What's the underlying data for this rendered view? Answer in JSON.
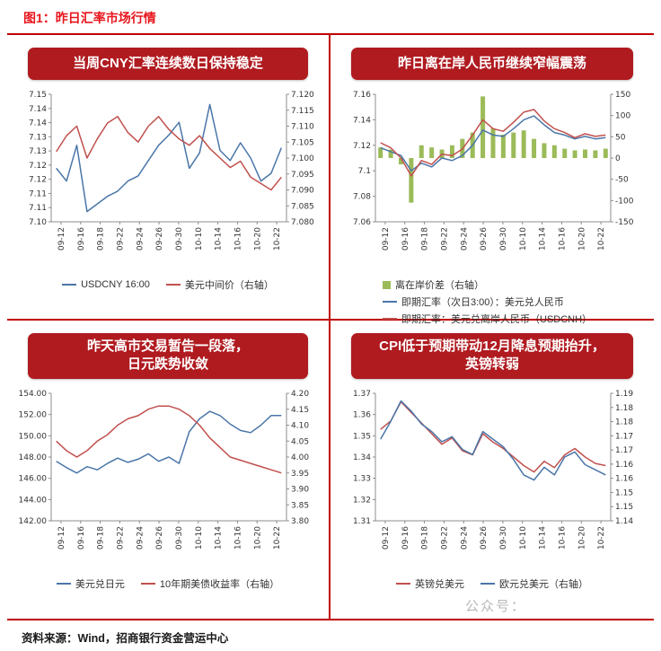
{
  "figure": {
    "title": "图1：昨日汇率市场行情",
    "source_note": "资料来源：Wind，招商银行资金营运中心",
    "watermark": "公众号："
  },
  "colors": {
    "blue": "#4a76a8",
    "red": "#c0504d",
    "green": "#9bbb59",
    "banner_red": "#b01b20",
    "divider_red": "#c00000",
    "title_red": "#e8151c"
  },
  "chart_data": [
    {
      "type": "line",
      "title": "当周CNY汇率连续数日保持稳定",
      "xlabel": "",
      "ylabel": "",
      "x": [
        "09-12",
        "09-15",
        "09-16",
        "09-17",
        "09-18",
        "09-19",
        "09-22",
        "09-23",
        "09-24",
        "09-25",
        "09-26",
        "09-29",
        "09-30",
        "10-09",
        "10-10",
        "10-13",
        "10-14",
        "10-15",
        "10-16",
        "10-17",
        "10-20",
        "10-21",
        "10-22"
      ],
      "x_tick_labels": [
        "09-12",
        "09-16",
        "09-18",
        "09-22",
        "09-24",
        "09-26",
        "09-30",
        "10-10",
        "10-14",
        "10-16",
        "10-20",
        "10-22"
      ],
      "left_axis": {
        "range": [
          7.1,
          7.15
        ],
        "ticks": [
          "7.15",
          "7.14",
          "7.14",
          "7.13",
          "7.13",
          "7.12",
          "7.12",
          "7.11",
          "7.11",
          "7.10"
        ]
      },
      "right_axis": {
        "range": [
          7.08,
          7.12
        ],
        "ticks": [
          "7.120",
          "7.115",
          "7.110",
          "7.105",
          "7.100",
          "7.095",
          "7.090",
          "7.085",
          "7.080"
        ]
      },
      "legend_layout": "row",
      "series": [
        {
          "name": "USDCNY 16:00",
          "type": "line",
          "axis": "left",
          "color": "blue",
          "values": [
            7.121,
            7.116,
            7.13,
            7.104,
            7.107,
            7.11,
            7.112,
            7.116,
            7.118,
            7.124,
            7.13,
            7.134,
            7.139,
            7.121,
            7.127,
            7.146,
            7.128,
            7.124,
            7.131,
            7.125,
            7.116,
            7.119,
            7.129
          ]
        },
        {
          "name": "美元中间价（右轴）",
          "type": "line",
          "axis": "right",
          "color": "red",
          "values": [
            7.102,
            7.107,
            7.11,
            7.1,
            7.106,
            7.111,
            7.113,
            7.108,
            7.105,
            7.11,
            7.113,
            7.109,
            7.106,
            7.104,
            7.107,
            7.103,
            7.1,
            7.097,
            7.099,
            7.094,
            7.092,
            7.09,
            7.094
          ]
        }
      ]
    },
    {
      "type": "line",
      "title": "昨日离在岸人民币继续窄幅震荡",
      "xlabel": "",
      "ylabel": "",
      "x": [
        "09-12",
        "09-15",
        "09-16",
        "09-17",
        "09-18",
        "09-19",
        "09-22",
        "09-23",
        "09-24",
        "09-25",
        "09-26",
        "09-29",
        "09-30",
        "10-09",
        "10-10",
        "10-13",
        "10-14",
        "10-15",
        "10-16",
        "10-17",
        "10-20",
        "10-21",
        "10-22"
      ],
      "x_tick_labels": [
        "09-12",
        "09-16",
        "09-18",
        "09-22",
        "09-24",
        "09-26",
        "09-30",
        "10-10",
        "10-14",
        "10-16",
        "10-20",
        "10-22"
      ],
      "left_axis": {
        "range": [
          7.06,
          7.16
        ],
        "ticks": [
          "7.16",
          "7.14",
          "7.12",
          "7.1",
          "7.08",
          "7.06"
        ]
      },
      "right_axis": {
        "range": [
          -150,
          150
        ],
        "ticks": [
          "150",
          "100",
          "50",
          "0",
          "-50",
          "-100",
          "-150"
        ]
      },
      "legend_layout": "column",
      "series": [
        {
          "name": "离在岸价差（右轴）",
          "type": "bar",
          "axis": "right",
          "color": "green",
          "values": [
            25,
            20,
            -15,
            -105,
            30,
            25,
            20,
            30,
            45,
            60,
            145,
            70,
            55,
            60,
            65,
            45,
            35,
            30,
            22,
            18,
            20,
            18,
            22
          ]
        },
        {
          "name": "即期汇率（次日3:00）：美元兑人民币",
          "type": "line",
          "axis": "left",
          "color": "blue",
          "values": [
            7.118,
            7.115,
            7.112,
            7.1,
            7.106,
            7.103,
            7.11,
            7.108,
            7.112,
            7.12,
            7.132,
            7.128,
            7.127,
            7.133,
            7.14,
            7.143,
            7.136,
            7.13,
            7.128,
            7.125,
            7.127,
            7.125,
            7.126
          ]
        },
        {
          "name": "即期汇率：美元兑离岸人民币（USDCNH）",
          "type": "line",
          "axis": "left",
          "color": "red",
          "values": [
            7.122,
            7.118,
            7.11,
            7.096,
            7.108,
            7.105,
            7.113,
            7.112,
            7.117,
            7.128,
            7.14,
            7.133,
            7.131,
            7.138,
            7.146,
            7.148,
            7.139,
            7.133,
            7.13,
            7.126,
            7.129,
            7.127,
            7.128
          ]
        }
      ]
    },
    {
      "type": "line",
      "title": "昨天高市交易暂告一段落，\n日元跌势收敛",
      "xlabel": "",
      "ylabel": "",
      "x": [
        "09-12",
        "09-15",
        "09-16",
        "09-17",
        "09-18",
        "09-19",
        "09-22",
        "09-23",
        "09-24",
        "09-25",
        "09-26",
        "09-29",
        "09-30",
        "10-09",
        "10-10",
        "10-13",
        "10-14",
        "10-15",
        "10-16",
        "10-17",
        "10-20",
        "10-21",
        "10-22"
      ],
      "x_tick_labels": [
        "09-12",
        "09-16",
        "09-18",
        "09-22",
        "09-24",
        "09-26",
        "09-30",
        "10-10",
        "10-14",
        "10-16",
        "10-20",
        "10-22"
      ],
      "left_axis": {
        "range": [
          142.0,
          154.0
        ],
        "ticks": [
          "154.00",
          "152.00",
          "150.00",
          "148.00",
          "146.00",
          "144.00",
          "142.00"
        ]
      },
      "right_axis": {
        "range": [
          3.8,
          4.2
        ],
        "ticks": [
          "4.20",
          "4.15",
          "4.10",
          "4.05",
          "4.00",
          "3.95",
          "3.90",
          "3.85",
          "3.80"
        ]
      },
      "legend_layout": "row",
      "series": [
        {
          "name": "美元兑日元",
          "type": "line",
          "axis": "left",
          "color": "blue",
          "values": [
            147.6,
            147.0,
            146.5,
            147.1,
            146.8,
            147.4,
            147.9,
            147.5,
            147.8,
            148.3,
            147.6,
            148.0,
            147.4,
            150.4,
            151.6,
            152.3,
            151.9,
            151.1,
            150.5,
            150.3,
            151.0,
            151.9,
            151.9
          ]
        },
        {
          "name": "10年期美债收益率（右轴）",
          "type": "line",
          "axis": "right",
          "color": "red",
          "values": [
            4.05,
            4.02,
            4.0,
            4.02,
            4.05,
            4.07,
            4.1,
            4.12,
            4.13,
            4.15,
            4.16,
            4.16,
            4.15,
            4.13,
            4.1,
            4.06,
            4.03,
            4.0,
            3.99,
            3.98,
            3.97,
            3.96,
            3.95
          ]
        }
      ]
    },
    {
      "type": "line",
      "title": "CPI低于预期带动12月降息预期抬升，\n英镑转弱",
      "xlabel": "",
      "ylabel": "",
      "x": [
        "09-12",
        "09-15",
        "09-16",
        "09-17",
        "09-18",
        "09-19",
        "09-22",
        "09-23",
        "09-24",
        "09-25",
        "09-26",
        "09-29",
        "09-30",
        "10-09",
        "10-10",
        "10-13",
        "10-14",
        "10-15",
        "10-16",
        "10-17",
        "10-20",
        "10-21",
        "10-22"
      ],
      "x_tick_labels": [
        "09-12",
        "09-16",
        "09-18",
        "09-22",
        "09-24",
        "09-26",
        "09-30",
        "10-10",
        "10-14",
        "10-16",
        "10-20",
        "10-22"
      ],
      "left_axis": {
        "range": [
          1.31,
          1.37
        ],
        "ticks": [
          "1.37",
          "1.36",
          "1.35",
          "1.34",
          "1.33",
          "1.32",
          "1.31"
        ]
      },
      "right_axis": {
        "range": [
          1.14,
          1.19
        ],
        "ticks": [
          "1.19",
          "1.18",
          "1.18",
          "1.17",
          "1.17",
          "1.16",
          "1.16",
          "1.15",
          "1.15",
          "1.14"
        ]
      },
      "legend_layout": "row",
      "series": [
        {
          "name": "英镑兑美元",
          "type": "line",
          "axis": "left",
          "color": "red",
          "values": [
            1.353,
            1.357,
            1.366,
            1.361,
            1.356,
            1.351,
            1.346,
            1.349,
            1.343,
            1.341,
            1.351,
            1.347,
            1.344,
            1.34,
            1.336,
            1.333,
            1.338,
            1.335,
            1.341,
            1.344,
            1.34,
            1.337,
            1.336
          ]
        },
        {
          "name": "欧元兑美元（右轴）",
          "type": "line",
          "axis": "right",
          "color": "blue",
          "values": [
            1.172,
            1.179,
            1.187,
            1.183,
            1.178,
            1.175,
            1.171,
            1.173,
            1.168,
            1.166,
            1.175,
            1.172,
            1.169,
            1.164,
            1.158,
            1.156,
            1.161,
            1.158,
            1.165,
            1.167,
            1.162,
            1.16,
            1.158
          ]
        }
      ]
    }
  ]
}
